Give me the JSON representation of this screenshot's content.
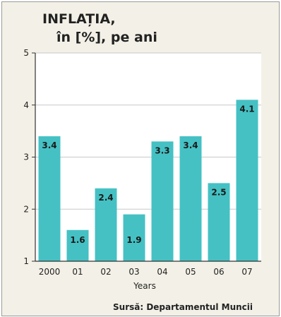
{
  "title_line1": "INFLAȚIA,",
  "title_line2": "în [%], pe ani",
  "source": "Sursă: Departamentul Muncii",
  "chart_data": {
    "type": "bar",
    "categories": [
      "2000",
      "01",
      "02",
      "03",
      "04",
      "05",
      "06",
      "07"
    ],
    "values": [
      3.4,
      1.6,
      2.4,
      1.9,
      3.3,
      3.4,
      2.5,
      4.1
    ],
    "labels": [
      "3.4",
      "1.6",
      "2.4",
      "1.9",
      "3.3",
      "3.4",
      "2.5",
      "4.1"
    ],
    "xlabel": "Years",
    "ylabel": "",
    "ylim": [
      1,
      5
    ],
    "yticks": [
      "1",
      "2",
      "3",
      "4",
      "5"
    ],
    "grid": true,
    "bar_color": "#45c1c4",
    "plot_bg": "#ffffff",
    "grid_color": "#c8c8c8"
  }
}
